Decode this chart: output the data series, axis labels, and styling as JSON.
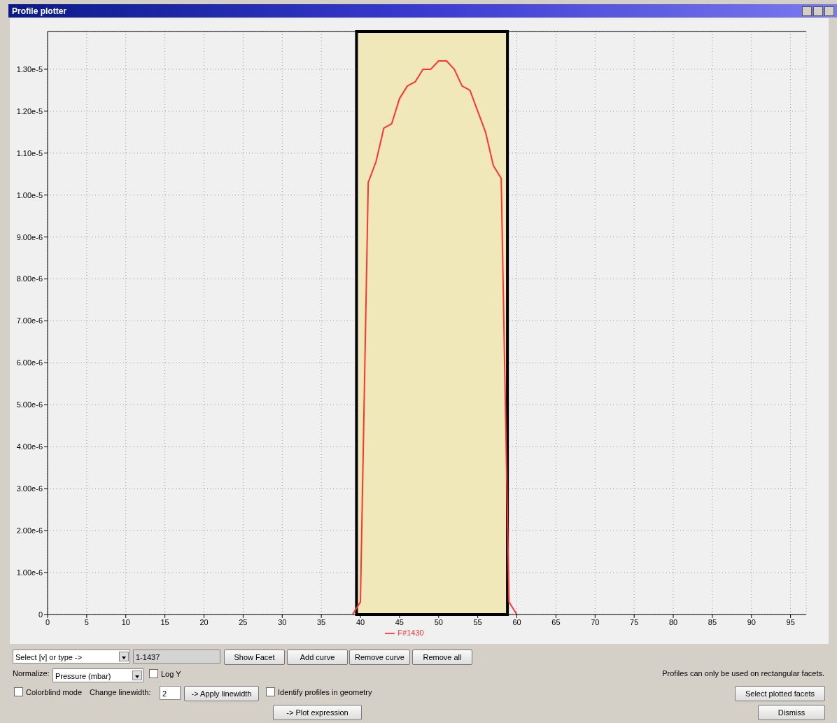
{
  "chart_data": {
    "type": "line",
    "title": "Profile plotter",
    "series": [
      {
        "name": "F#1430",
        "color": "#ff3333",
        "x": [
          39,
          40,
          41,
          42,
          43,
          44,
          45,
          46,
          47,
          48,
          49,
          50,
          51,
          52,
          53,
          54,
          55,
          56,
          57,
          58,
          59,
          60
        ],
        "values": [
          0,
          3e-07,
          1.03e-05,
          1.08e-05,
          1.16e-05,
          1.17e-05,
          1.23e-05,
          1.26e-05,
          1.27e-05,
          1.3e-05,
          1.3e-05,
          1.32e-05,
          1.32e-05,
          1.3e-05,
          1.26e-05,
          1.25e-05,
          1.2e-05,
          1.15e-05,
          1.07e-05,
          1.04e-05,
          3e-07,
          0
        ]
      }
    ],
    "xlim": [
      0,
      97
    ],
    "xticks": [
      0,
      5,
      10,
      15,
      20,
      25,
      30,
      35,
      40,
      45,
      50,
      55,
      60,
      65,
      70,
      75,
      80,
      85,
      90,
      95
    ],
    "ylim": [
      0,
      1.39e-05
    ],
    "yticks": [
      0,
      {
        "value": 1e-06,
        "label": "1.00e-6"
      },
      {
        "value": 2e-06,
        "label": "2.00e-6"
      },
      {
        "value": 3e-06,
        "label": "3.00e-6"
      },
      {
        "value": 4e-06,
        "label": "4.00e-6"
      },
      {
        "value": 5e-06,
        "label": "5.00e-6"
      },
      {
        "value": 6e-06,
        "label": "6.00e-6"
      },
      {
        "value": 7e-06,
        "label": "7.00e-6"
      },
      {
        "value": 8e-06,
        "label": "8.00e-6"
      },
      {
        "value": 9e-06,
        "label": "9.00e-6"
      },
      {
        "value": 1e-05,
        "label": "1.00e-5"
      },
      {
        "value": 1.1e-05,
        "label": "1.10e-5"
      },
      {
        "value": 1.2e-05,
        "label": "1.20e-5"
      },
      {
        "value": 1.3e-05,
        "label": "1.30e-5"
      }
    ],
    "bands": [
      {
        "axis": "x",
        "from": 39.5,
        "to": 58.8,
        "color": "#f0e8b8"
      }
    ],
    "grid": true,
    "legend": "bottom",
    "marker": "none",
    "line_style": "solid",
    "annotations": [
      "Select [v] or type ->",
      "1-1437",
      "Show Facet",
      "Add curve",
      "Remove curve",
      "Remove all",
      "Normalize:",
      "Pressure (mbar)",
      "Log Y",
      "Profiles can only be used on rectangular facets.",
      "Colorblind mode",
      "Change linewidth:",
      "2",
      "-> Apply linewidth",
      "Identify profiles in geometry",
      "Select plotted facets",
      "-> Plot expression",
      "Dismiss"
    ]
  }
}
